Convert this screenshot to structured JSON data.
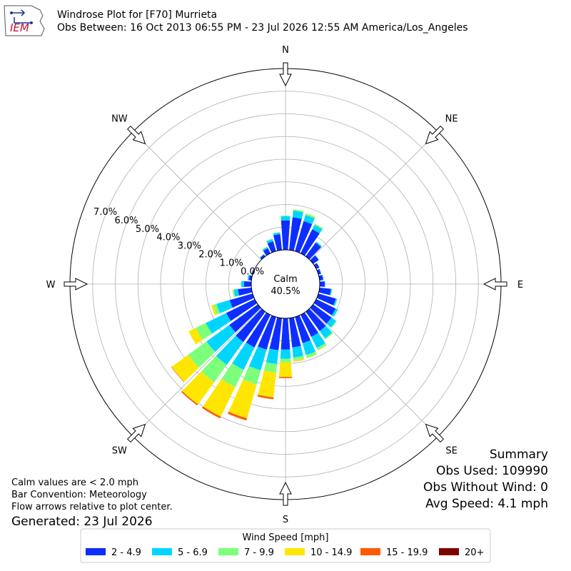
{
  "header": {
    "logo_text": "IEM",
    "title": "Windrose Plot for [F70] Murrieta",
    "subtitle": "Obs Between: 16 Oct 2013 06:55 PM - 23 Jul 2026 12:55 AM America/Los_Angeles"
  },
  "chart_data": {
    "type": "windrose",
    "title": "Windrose Plot for [F70] Murrieta",
    "directions_deg": [
      0,
      10,
      20,
      30,
      40,
      50,
      60,
      70,
      80,
      90,
      100,
      110,
      120,
      130,
      140,
      150,
      160,
      170,
      180,
      190,
      200,
      210,
      220,
      230,
      240,
      250,
      260,
      270,
      280,
      290,
      300,
      310,
      320,
      330,
      340,
      350
    ],
    "compass_labels": [
      "N",
      "NE",
      "E",
      "SE",
      "S",
      "SW",
      "W",
      "NW"
    ],
    "radial_ticks": [
      "0.0%",
      "1.0%",
      "2.0%",
      "3.0%",
      "4.0%",
      "5.0%",
      "6.0%",
      "7.0%"
    ],
    "radial_range": [
      0,
      8
    ],
    "grid": true,
    "calm_label": "Calm",
    "calm_value": "40.5%",
    "legend_title": "Wind Speed [mph]",
    "legend_position": "bottom",
    "series": [
      {
        "name": "2 - 4.9",
        "color": "#0d2eff",
        "values": [
          1.3,
          1.45,
          1.38,
          1.18,
          0.75,
          0.3,
          0.15,
          0.12,
          0.15,
          0.22,
          0.5,
          0.8,
          0.95,
          1.0,
          1.05,
          1.08,
          1.2,
          1.3,
          1.38,
          1.42,
          1.5,
          1.6,
          1.65,
          1.55,
          1.4,
          1.05,
          0.6,
          0.32,
          0.12,
          0.05,
          0.0,
          0.0,
          0.1,
          0.25,
          0.45,
          0.7
        ]
      },
      {
        "name": "5 - 6.9",
        "color": "#00d5ff",
        "values": [
          0.18,
          0.3,
          0.28,
          0.22,
          0.05,
          0.02,
          0.01,
          0.01,
          0.03,
          0.02,
          0.05,
          0.06,
          0.1,
          0.25,
          0.4,
          0.55,
          0.55,
          0.45,
          0.4,
          0.62,
          0.95,
          1.1,
          1.25,
          1.25,
          1.0,
          0.6,
          0.18,
          0.12,
          0.05,
          0.0,
          0.0,
          0.0,
          0.02,
          0.06,
          0.1,
          0.08
        ]
      },
      {
        "name": "7 - 9.9",
        "color": "#7cff7a",
        "values": [
          0.03,
          0.05,
          0.07,
          0.05,
          0.02,
          0.01,
          0.0,
          0.0,
          0.01,
          0.0,
          0.01,
          0.02,
          0.03,
          0.04,
          0.05,
          0.1,
          0.12,
          0.12,
          0.16,
          0.38,
          0.65,
          0.85,
          0.95,
          1.0,
          0.5,
          0.15,
          0.05,
          0.02,
          0.01,
          0.0,
          0.0,
          0.0,
          0.01,
          0.02,
          0.03,
          0.02
        ]
      },
      {
        "name": "10 - 14.9",
        "color": "#ffe600",
        "values": [
          0.0,
          0.01,
          0.01,
          0.01,
          0.0,
          0.0,
          0.0,
          0.0,
          0.0,
          0.0,
          0.0,
          0.0,
          0.0,
          0.0,
          0.01,
          0.02,
          0.02,
          0.05,
          0.65,
          1.1,
          1.55,
          1.45,
          1.2,
          0.9,
          0.35,
          0.1,
          0.02,
          0.0,
          0.0,
          0.0,
          0.0,
          0.0,
          0.0,
          0.0,
          0.0,
          0.0
        ]
      },
      {
        "name": "15 - 19.9",
        "color": "#ff5a00",
        "values": [
          0.0,
          0.0,
          0.0,
          0.0,
          0.0,
          0.0,
          0.0,
          0.0,
          0.0,
          0.0,
          0.0,
          0.0,
          0.0,
          0.0,
          0.0,
          0.0,
          0.0,
          0.01,
          0.05,
          0.08,
          0.1,
          0.08,
          0.06,
          0.02,
          0.0,
          0.0,
          0.0,
          0.0,
          0.0,
          0.0,
          0.0,
          0.0,
          0.0,
          0.0,
          0.0,
          0.0
        ]
      },
      {
        "name": "20+",
        "color": "#800000",
        "values": [
          0,
          0,
          0,
          0,
          0,
          0,
          0,
          0,
          0,
          0,
          0,
          0,
          0,
          0,
          0,
          0,
          0,
          0,
          0,
          0,
          0,
          0,
          0,
          0,
          0,
          0,
          0,
          0,
          0,
          0,
          0,
          0,
          0,
          0,
          0,
          0
        ]
      }
    ]
  },
  "notes": {
    "calm": "Calm values are < 2.0 mph",
    "convention": "Bar Convention: Meteorology",
    "flow": "Flow arrows relative to plot center.",
    "generated": "Generated: 23 Jul 2026"
  },
  "summary": {
    "title": "Summary",
    "obs_used": "Obs Used: 109990",
    "obs_without_wind": "Obs Without Wind: 0",
    "avg_speed": "Avg Speed: 4.1 mph"
  }
}
